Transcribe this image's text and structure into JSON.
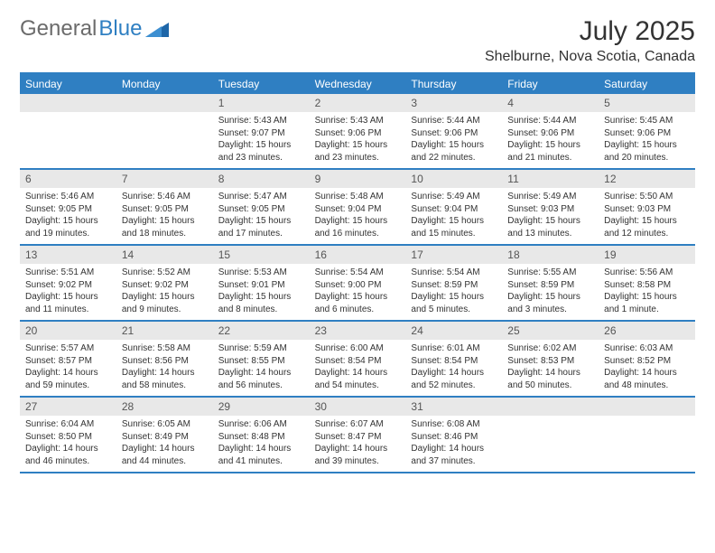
{
  "brand": {
    "part1": "General",
    "part2": "Blue"
  },
  "title": "July 2025",
  "location": "Shelburne, Nova Scotia, Canada",
  "colors": {
    "accent": "#2f7fc2",
    "header_bg": "#2f7fc2",
    "header_text": "#ffffff",
    "daynum_bg": "#e8e8e8",
    "text": "#333333",
    "background": "#ffffff"
  },
  "fonts": {
    "month_title_pt": 30,
    "location_pt": 16,
    "dow_pt": 12,
    "daynum_pt": 12,
    "body_pt": 10
  },
  "dow": [
    "Sunday",
    "Monday",
    "Tuesday",
    "Wednesday",
    "Thursday",
    "Friday",
    "Saturday"
  ],
  "weeks": [
    [
      null,
      null,
      {
        "n": "1",
        "sunrise": "5:43 AM",
        "sunset": "9:07 PM",
        "daylight": "15 hours and 23 minutes."
      },
      {
        "n": "2",
        "sunrise": "5:43 AM",
        "sunset": "9:06 PM",
        "daylight": "15 hours and 23 minutes."
      },
      {
        "n": "3",
        "sunrise": "5:44 AM",
        "sunset": "9:06 PM",
        "daylight": "15 hours and 22 minutes."
      },
      {
        "n": "4",
        "sunrise": "5:44 AM",
        "sunset": "9:06 PM",
        "daylight": "15 hours and 21 minutes."
      },
      {
        "n": "5",
        "sunrise": "5:45 AM",
        "sunset": "9:06 PM",
        "daylight": "15 hours and 20 minutes."
      }
    ],
    [
      {
        "n": "6",
        "sunrise": "5:46 AM",
        "sunset": "9:05 PM",
        "daylight": "15 hours and 19 minutes."
      },
      {
        "n": "7",
        "sunrise": "5:46 AM",
        "sunset": "9:05 PM",
        "daylight": "15 hours and 18 minutes."
      },
      {
        "n": "8",
        "sunrise": "5:47 AM",
        "sunset": "9:05 PM",
        "daylight": "15 hours and 17 minutes."
      },
      {
        "n": "9",
        "sunrise": "5:48 AM",
        "sunset": "9:04 PM",
        "daylight": "15 hours and 16 minutes."
      },
      {
        "n": "10",
        "sunrise": "5:49 AM",
        "sunset": "9:04 PM",
        "daylight": "15 hours and 15 minutes."
      },
      {
        "n": "11",
        "sunrise": "5:49 AM",
        "sunset": "9:03 PM",
        "daylight": "15 hours and 13 minutes."
      },
      {
        "n": "12",
        "sunrise": "5:50 AM",
        "sunset": "9:03 PM",
        "daylight": "15 hours and 12 minutes."
      }
    ],
    [
      {
        "n": "13",
        "sunrise": "5:51 AM",
        "sunset": "9:02 PM",
        "daylight": "15 hours and 11 minutes."
      },
      {
        "n": "14",
        "sunrise": "5:52 AM",
        "sunset": "9:02 PM",
        "daylight": "15 hours and 9 minutes."
      },
      {
        "n": "15",
        "sunrise": "5:53 AM",
        "sunset": "9:01 PM",
        "daylight": "15 hours and 8 minutes."
      },
      {
        "n": "16",
        "sunrise": "5:54 AM",
        "sunset": "9:00 PM",
        "daylight": "15 hours and 6 minutes."
      },
      {
        "n": "17",
        "sunrise": "5:54 AM",
        "sunset": "8:59 PM",
        "daylight": "15 hours and 5 minutes."
      },
      {
        "n": "18",
        "sunrise": "5:55 AM",
        "sunset": "8:59 PM",
        "daylight": "15 hours and 3 minutes."
      },
      {
        "n": "19",
        "sunrise": "5:56 AM",
        "sunset": "8:58 PM",
        "daylight": "15 hours and 1 minute."
      }
    ],
    [
      {
        "n": "20",
        "sunrise": "5:57 AM",
        "sunset": "8:57 PM",
        "daylight": "14 hours and 59 minutes."
      },
      {
        "n": "21",
        "sunrise": "5:58 AM",
        "sunset": "8:56 PM",
        "daylight": "14 hours and 58 minutes."
      },
      {
        "n": "22",
        "sunrise": "5:59 AM",
        "sunset": "8:55 PM",
        "daylight": "14 hours and 56 minutes."
      },
      {
        "n": "23",
        "sunrise": "6:00 AM",
        "sunset": "8:54 PM",
        "daylight": "14 hours and 54 minutes."
      },
      {
        "n": "24",
        "sunrise": "6:01 AM",
        "sunset": "8:54 PM",
        "daylight": "14 hours and 52 minutes."
      },
      {
        "n": "25",
        "sunrise": "6:02 AM",
        "sunset": "8:53 PM",
        "daylight": "14 hours and 50 minutes."
      },
      {
        "n": "26",
        "sunrise": "6:03 AM",
        "sunset": "8:52 PM",
        "daylight": "14 hours and 48 minutes."
      }
    ],
    [
      {
        "n": "27",
        "sunrise": "6:04 AM",
        "sunset": "8:50 PM",
        "daylight": "14 hours and 46 minutes."
      },
      {
        "n": "28",
        "sunrise": "6:05 AM",
        "sunset": "8:49 PM",
        "daylight": "14 hours and 44 minutes."
      },
      {
        "n": "29",
        "sunrise": "6:06 AM",
        "sunset": "8:48 PM",
        "daylight": "14 hours and 41 minutes."
      },
      {
        "n": "30",
        "sunrise": "6:07 AM",
        "sunset": "8:47 PM",
        "daylight": "14 hours and 39 minutes."
      },
      {
        "n": "31",
        "sunrise": "6:08 AM",
        "sunset": "8:46 PM",
        "daylight": "14 hours and 37 minutes."
      },
      null,
      null
    ]
  ]
}
